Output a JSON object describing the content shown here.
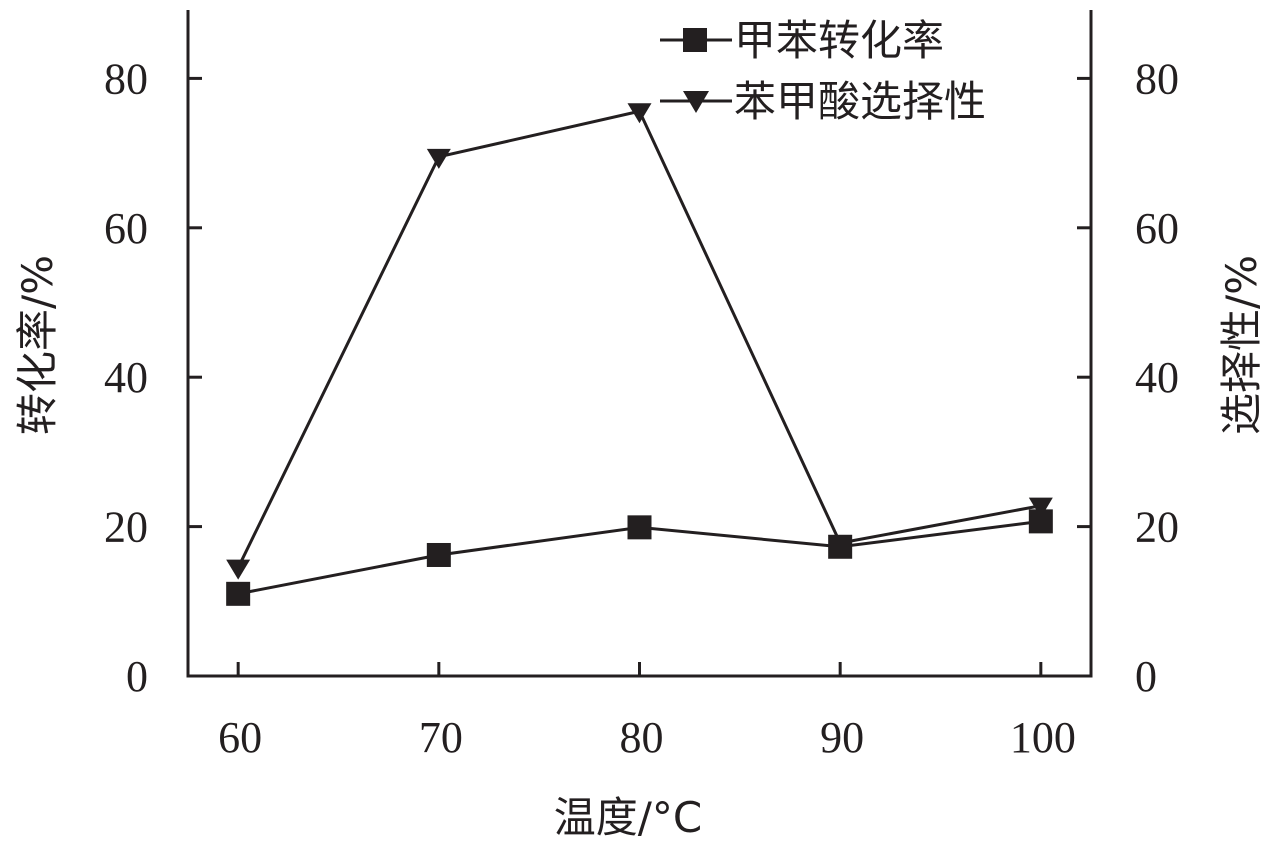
{
  "chart_data": {
    "type": "line",
    "title": "",
    "xlabel": "温度/°C",
    "ylabel_left": "转化率/%",
    "ylabel_right": "选择性/%",
    "x": [
      60,
      70,
      80,
      90,
      100
    ],
    "x_ticks": [
      "60",
      "70",
      "80",
      "90",
      "100"
    ],
    "xlim": [
      57.5,
      102.5
    ],
    "ylim_left": [
      0,
      80
    ],
    "ylim_right": [
      0,
      80
    ],
    "y_ticks": [
      "0",
      "20",
      "40",
      "60",
      "80"
    ],
    "y_tick_values": [
      0,
      20,
      40,
      60,
      80
    ],
    "grid": false,
    "legend_position": "top-right",
    "series": [
      {
        "name": "甲苯转化率",
        "marker": "square",
        "axis": "left",
        "values": [
          11,
          16.2,
          19.9,
          17.3,
          20.7
        ]
      },
      {
        "name": "苯甲酸选择性",
        "marker": "triangle-down",
        "axis": "right",
        "values": [
          14.5,
          69.5,
          75.6,
          17.8,
          22.8
        ]
      }
    ],
    "colors": {
      "ink": "#231f20",
      "background": "#ffffff"
    }
  }
}
